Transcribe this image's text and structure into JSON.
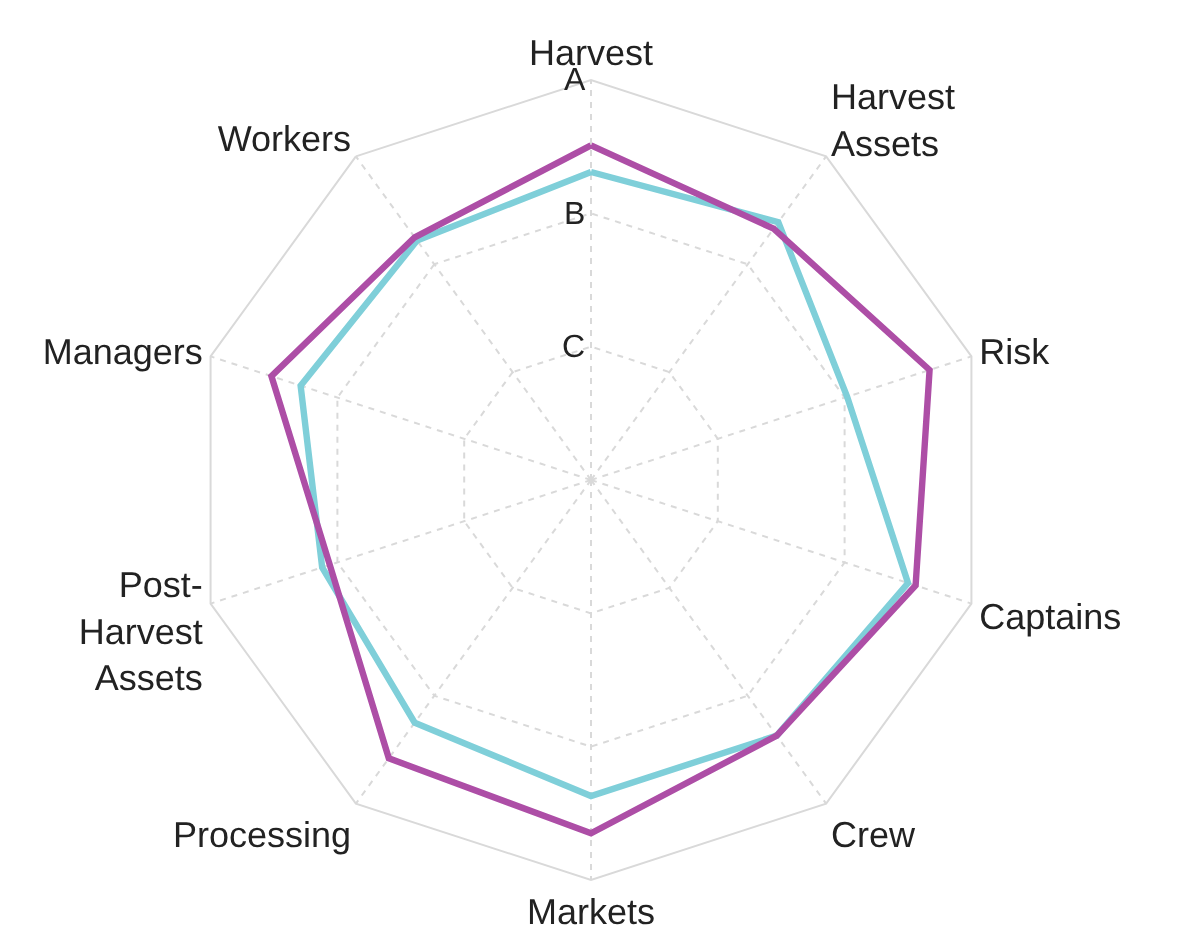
{
  "chart_data": {
    "type": "radar",
    "categories": [
      "Harvest",
      "Harvest Assets",
      "Risk",
      "Captains",
      "Crew",
      "Markets",
      "Processing",
      "Post-Harvest Assets",
      "Managers",
      "Workers"
    ],
    "series": [
      {
        "color": "#7fcfd9",
        "values": [
          2.31,
          2.39,
          2.02,
          2.5,
          2.37,
          2.37,
          2.25,
          2.12,
          2.29,
          2.22
        ]
      },
      {
        "color": "#ad4ea6",
        "values": [
          2.51,
          2.33,
          2.67,
          2.56,
          2.37,
          2.65,
          2.58,
          2.06,
          2.52,
          2.25
        ]
      }
    ],
    "ylim": [
      0,
      3
    ],
    "yticks": [
      {
        "value": 1,
        "label": "C"
      },
      {
        "value": 2,
        "label": "B"
      },
      {
        "value": 3,
        "label": "A"
      }
    ],
    "grid": true,
    "marker": "none",
    "line_style": "solid"
  }
}
